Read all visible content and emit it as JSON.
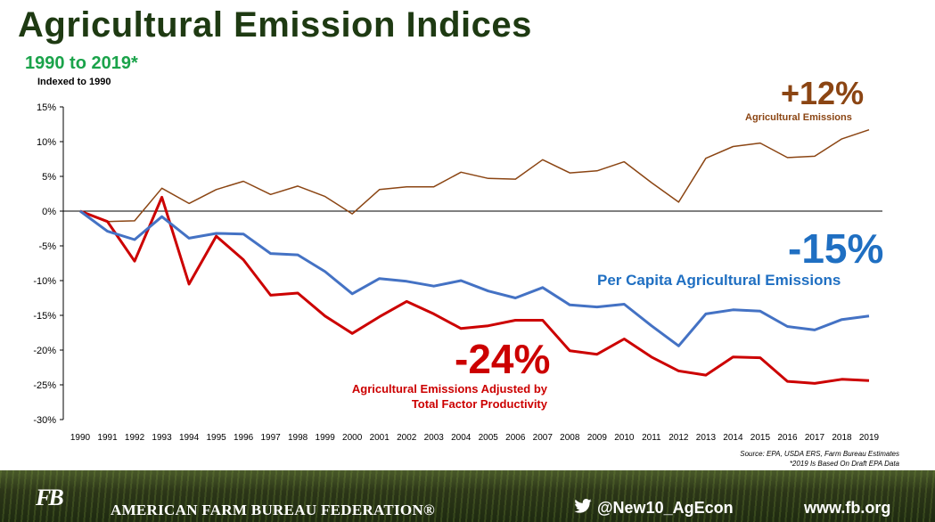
{
  "header": {
    "title": "Agricultural Emission Indices",
    "subtitle": "1990 to 2019*",
    "indexed": "Indexed to 1990"
  },
  "annotations": {
    "ag_pct": "+12%",
    "ag_label": "Agricultural Emissions",
    "pc_pct": "-15%",
    "pc_label": "Per Capita Agricultural Emissions",
    "tfp_pct": "-24%",
    "tfp_label_1": "Agricultural Emissions Adjusted by",
    "tfp_label_2": "Total Factor Productivity"
  },
  "source": {
    "line1": "Source: EPA, USDA ERS, Farm Bureau Estimates",
    "line2": "*2019 Is Based On Draft EPA Data"
  },
  "footer": {
    "logo": "FB",
    "org": "AMERICAN FARM BUREAU FEDERATION®",
    "twitter": "@New10_AgEcon",
    "website": "www.fb.org"
  },
  "colors": {
    "ag": "#8b4513",
    "per_capita": "#4472c4",
    "tfp": "#cc0000"
  },
  "chart_data": {
    "type": "line",
    "title": "Agricultural Emission Indices",
    "x": [
      "1990",
      "1991",
      "1992",
      "1993",
      "1994",
      "1995",
      "1996",
      "1997",
      "1998",
      "1999",
      "2000",
      "2001",
      "2002",
      "2003",
      "2004",
      "2005",
      "2006",
      "2007",
      "2008",
      "2009",
      "2010",
      "2011",
      "2012",
      "2013",
      "2014",
      "2015",
      "2016",
      "2017",
      "2018",
      "2019"
    ],
    "ylim": [
      -30,
      15
    ],
    "yticks": [
      15,
      10,
      5,
      0,
      -5,
      -10,
      -15,
      -20,
      -25,
      -30
    ],
    "ytick_labels": [
      "15%",
      "10%",
      "5%",
      "0%",
      "-5%",
      "-10%",
      "-15%",
      "-20%",
      "-25%",
      "-30%"
    ],
    "series": [
      {
        "key": "ag",
        "values": [
          0,
          -1.5,
          -1.4,
          3.3,
          1.1,
          3.1,
          4.3,
          2.4,
          3.6,
          2.1,
          -0.4,
          3.1,
          3.5,
          3.5,
          5.6,
          4.7,
          4.6,
          7.4,
          5.5,
          5.8,
          7.1,
          4.1,
          1.3,
          7.6,
          9.3,
          9.8,
          7.7,
          7.9,
          10.4,
          11.7
        ]
      },
      {
        "key": "per_capita",
        "values": [
          0,
          -2.9,
          -4.1,
          -0.8,
          -3.9,
          -3.2,
          -3.3,
          -6.1,
          -6.3,
          -8.7,
          -11.9,
          -9.7,
          -10.1,
          -10.8,
          -10.0,
          -11.5,
          -12.5,
          -11.0,
          -13.5,
          -13.8,
          -13.4,
          -16.5,
          -19.4,
          -14.8,
          -14.2,
          -14.4,
          -16.6,
          -17.1,
          -15.6,
          -15.1
        ]
      },
      {
        "key": "tfp",
        "values": [
          0,
          -1.5,
          -7.2,
          2.0,
          -10.5,
          -3.6,
          -7.0,
          -12.1,
          -11.8,
          -15.1,
          -17.6,
          -15.2,
          -13.0,
          -14.8,
          -16.9,
          -16.5,
          -15.7,
          -15.7,
          -20.1,
          -20.6,
          -18.4,
          -21.0,
          -23.0,
          -23.6,
          -21.0,
          -21.1,
          -24.5,
          -24.8,
          -24.2,
          -24.4
        ]
      }
    ]
  }
}
